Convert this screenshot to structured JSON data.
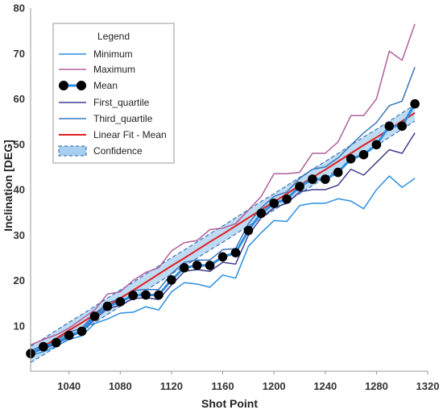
{
  "chart_data": {
    "type": "line",
    "xlabel": "Shot Point",
    "ylabel": "Inclination [DEG]",
    "xlim": [
      1010,
      1320
    ],
    "ylim": [
      0,
      80
    ],
    "x_ticks": [
      1040,
      1080,
      1120,
      1160,
      1200,
      1240,
      1280,
      1320
    ],
    "y_ticks": [
      10,
      20,
      30,
      40,
      50,
      60,
      70,
      80
    ],
    "grid": false,
    "legend": {
      "title": "Legend",
      "placement": "top-left",
      "entries": [
        "Minimum",
        "Maximum",
        "Mean",
        "First_quartile",
        "Third_quartile",
        "Linear Fit - Mean",
        "Confidence"
      ]
    },
    "x": [
      1010,
      1020,
      1030,
      1040,
      1050,
      1060,
      1070,
      1080,
      1090,
      1100,
      1110,
      1120,
      1130,
      1140,
      1150,
      1160,
      1170,
      1180,
      1190,
      1200,
      1210,
      1220,
      1230,
      1240,
      1250,
      1260,
      1270,
      1280,
      1290,
      1300,
      1310
    ],
    "series": [
      {
        "name": "Minimum",
        "color": "#2b8fe0",
        "values": [
          3.5,
          4.3,
          5.5,
          7.0,
          7.8,
          10.5,
          11.5,
          12.8,
          13.0,
          14.2,
          13.5,
          17.5,
          19.5,
          19.2,
          18.5,
          21.2,
          20.5,
          27.5,
          30.5,
          33.2,
          33.0,
          36.5,
          37.0,
          37.0,
          38.0,
          37.5,
          35.8,
          40.0,
          43.0,
          40.5,
          42.5
        ]
      },
      {
        "name": "Maximum",
        "color": "#b0609a",
        "values": [
          5.8,
          7.0,
          8.0,
          9.5,
          11.5,
          13.5,
          17.0,
          17.5,
          20.0,
          21.8,
          22.8,
          26.5,
          28.3,
          28.8,
          31.2,
          31.5,
          32.5,
          35.5,
          38.5,
          43.5,
          43.5,
          43.8,
          48.0,
          48.0,
          50.5,
          56.3,
          56.3,
          60.0,
          70.5,
          68.5,
          76.5
        ]
      },
      {
        "name": "First_quartile",
        "color": "#3f3f8f",
        "values": [
          3.8,
          5.0,
          6.0,
          7.6,
          8.6,
          11.5,
          13.8,
          14.5,
          16.0,
          16.2,
          15.8,
          19.0,
          22.0,
          22.4,
          22.0,
          24.0,
          23.6,
          30.0,
          33.8,
          36.0,
          37.0,
          39.5,
          40.0,
          40.0,
          41.0,
          44.5,
          43.2,
          46.0,
          48.8,
          48.0,
          52.5
        ]
      },
      {
        "name": "Third_quartile",
        "color": "#3a76b8",
        "values": [
          4.5,
          5.8,
          6.8,
          8.6,
          9.5,
          12.6,
          15.0,
          16.0,
          17.8,
          18.0,
          18.0,
          21.5,
          24.0,
          24.5,
          24.5,
          26.8,
          27.0,
          32.5,
          36.0,
          38.5,
          39.5,
          42.5,
          44.5,
          45.0,
          47.0,
          49.8,
          52.5,
          54.8,
          58.5,
          59.5,
          67.0
        ]
      },
      {
        "name": "Mean",
        "color": "#000000",
        "line_color": "#2b8fe0",
        "values": [
          3.9,
          5.4,
          6.3,
          7.9,
          8.8,
          12.1,
          14.3,
          15.3,
          16.7,
          16.8,
          16.8,
          20.1,
          22.8,
          23.3,
          23.3,
          25.2,
          26.1,
          31.0,
          34.8,
          37.0,
          37.9,
          40.7,
          42.3,
          42.3,
          43.8,
          46.8,
          47.7,
          49.9,
          54.0,
          54.0,
          58.9
        ]
      },
      {
        "name": "Linear Fit - Mean",
        "color": "#e02020",
        "values": [
          3.7,
          5.4,
          7.2,
          9.0,
          10.7,
          12.5,
          14.3,
          16.1,
          17.8,
          19.6,
          21.4,
          23.2,
          24.9,
          26.7,
          28.5,
          30.2,
          32.0,
          33.8,
          35.6,
          37.3,
          39.1,
          40.9,
          42.7,
          44.4,
          46.2,
          48.0,
          49.8,
          51.5,
          53.3,
          55.1,
          56.9
        ]
      }
    ],
    "confidence": {
      "name": "Confidence",
      "color": "#a8cff0",
      "line_color": "#1f5fa8",
      "half_width": 1.8
    }
  }
}
